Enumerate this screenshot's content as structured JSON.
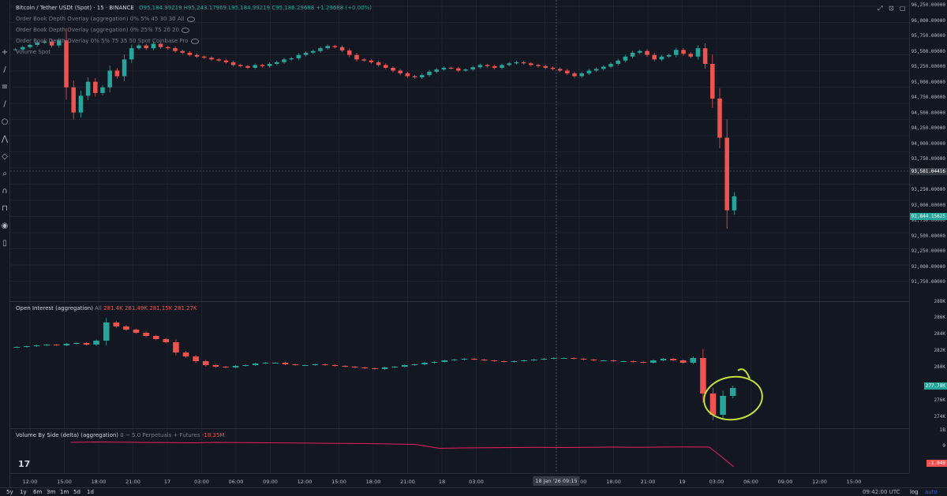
{
  "main_legend": {
    "symbol": "Bitcoin / Tether USDt (Spot) · 15 · BINANCE",
    "ohlc": "O95,184.99219 H95,243.17969 L95,184.99219 C95,186.29688 +1.29688 (+0.00%)",
    "overlay1": "Order Book Depth Overlay (aggregation) 0% 5% 45 30 30 All",
    "overlay2": "Order Book Depth Overlay (aggregation) 0% 25% 75 20 20",
    "overlay3": "Order Book Depth Overlay 0% 5% 75 35 50 Spot Coinbase Pro",
    "overlay4": "Volume Spot"
  },
  "oi_legend": {
    "title": "Open Interest (aggregation)",
    "scope": "All",
    "values": "281.4K 281.49K 281.15K 281.27K"
  },
  "vol_legend": {
    "title": "Volume By Side (delta) (aggregation)",
    "params": "0 ~ 5.0 Perpetuals + Futures",
    "value": "-18.35M"
  },
  "price_axis": [
    "96,250.00000",
    "96,000.00000",
    "95,750.00000",
    "95,500.00000",
    "95,250.00000",
    "95,000.00000",
    "94,750.00000",
    "94,500.00000",
    "94,250.00000",
    "94,000.00000",
    "93,750.00000",
    "93,250.00000",
    "93,000.00000",
    "92,750.00000",
    "92,500.00000",
    "92,250.00000",
    "92,000.00000",
    "91,750.00000"
  ],
  "price_tag_crosshair": "93,581.04416",
  "price_tag_last": "92,844.15625",
  "oi_axis": [
    "286K",
    "284K",
    "282K",
    "280K",
    "278K",
    "276K",
    "274K"
  ],
  "oi_axis_top": "288K",
  "oi_tag": "277.78K",
  "vol_axis": [
    "1B",
    "0"
  ],
  "vol_tag": "-1.04B",
  "time_axis": [
    "12:00",
    "15:00",
    "18:00",
    "21:00",
    "17",
    "03:00",
    "06:00",
    "09:00",
    "12:00",
    "15:00",
    "18:00",
    "21:00",
    "18",
    "03:00",
    "06:00",
    "12:00",
    "15:00",
    "18:00",
    "21:00",
    "19",
    "03:00",
    "06:00",
    "09:00",
    "12:00",
    "15:00"
  ],
  "time_tag_date": "18 Jan '26",
  "time_tag_time": "09:15",
  "ranges": [
    "5y",
    "1y",
    "6m",
    "3m",
    "1m",
    "5d",
    "1d"
  ],
  "clock": "09:42:00 UTC",
  "scale_mode": "log",
  "auto": "auto",
  "logo": "17",
  "colors": {
    "up": "#26a69a",
    "down": "#ef5350",
    "annotation": "#c6e03a",
    "delta": "#e91e63",
    "bg": "#131722"
  },
  "chart_data": [
    {
      "type": "candlestick",
      "name": "BTCUSDT 15m",
      "description_series": "approximate closing prices along time",
      "ylim": [
        91750,
        96250
      ],
      "closes": [
        95480,
        95520,
        95560,
        95600,
        95620,
        95550,
        95640,
        94800,
        94350,
        94650,
        94900,
        94700,
        94800,
        95100,
        95000,
        95300,
        95500,
        95550,
        95500,
        95580,
        95520,
        95500,
        95450,
        95420,
        95380,
        95350,
        95330,
        95300,
        95280,
        95250,
        95200,
        95180,
        95150,
        95200,
        95180,
        95220,
        95250,
        95300,
        95320,
        95380,
        95420,
        95450,
        95500,
        95540,
        95520,
        95460,
        95380,
        95300,
        95280,
        95250,
        95200,
        95150,
        95100,
        95050,
        95000,
        94980,
        95020,
        95080,
        95120,
        95150,
        95140,
        95100,
        95120,
        95160,
        95200,
        95180,
        95150,
        95200,
        95230,
        95250,
        95230,
        95200,
        95180,
        95150,
        95130,
        95100,
        95050,
        95000,
        95050,
        95100,
        95130,
        95170,
        95220,
        95280,
        95350,
        95420,
        95450,
        95380,
        95300,
        95350,
        95380,
        95470,
        95400,
        95350,
        95500,
        95220,
        94600,
        93900,
        92600,
        92850
      ]
    },
    {
      "type": "candlestick",
      "name": "Open Interest (aggregation)",
      "ylim": [
        273000,
        288000
      ],
      "closes": [
        283000,
        283100,
        283200,
        283300,
        283200,
        283400,
        283500,
        283300,
        283800,
        286100,
        285600,
        285200,
        284800,
        284400,
        284000,
        283600,
        282300,
        281800,
        281200,
        280700,
        280500,
        280400,
        280600,
        280700,
        280900,
        281000,
        281000,
        280800,
        280700,
        280700,
        280800,
        280700,
        280600,
        280500,
        280400,
        280300,
        280200,
        280400,
        280500,
        280700,
        280800,
        281000,
        281100,
        281300,
        281400,
        281500,
        281400,
        281300,
        281200,
        281100,
        281200,
        281300,
        281400,
        281500,
        281600,
        281600,
        281500,
        281400,
        281300,
        281300,
        281200,
        281200,
        281100,
        281000,
        281300,
        281500,
        281300,
        281000,
        281600,
        277100,
        274400,
        276800,
        277800
      ]
    },
    {
      "type": "line",
      "name": "Volume By Side (delta)",
      "ylim": [
        -1500000000,
        1200000000
      ],
      "values": [
        0.2,
        0.22,
        0.21,
        0.2,
        0.19,
        0.18,
        0.2,
        0.19,
        0.18,
        0.17,
        0.16,
        0.15,
        0.14,
        0.12,
        0.1,
        -0.1,
        -0.08,
        -0.07,
        -0.06,
        -0.05,
        -0.06,
        -0.05,
        -0.04,
        -0.05,
        -0.04,
        -0.03,
        -0.04,
        -1.04
      ]
    }
  ]
}
